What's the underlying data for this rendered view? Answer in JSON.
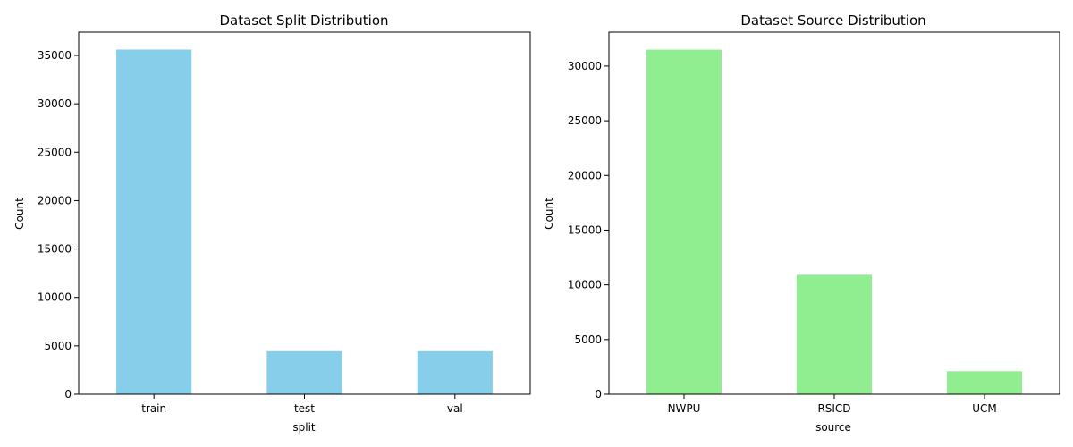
{
  "chart_data": [
    {
      "type": "bar",
      "title": "Dataset Split Distribution",
      "xlabel": "split",
      "ylabel": "Count",
      "categories": [
        "train",
        "test",
        "val"
      ],
      "values": [
        35600,
        4450,
        4450
      ],
      "ylim": [
        0,
        37400
      ],
      "yticks": [
        0,
        5000,
        10000,
        15000,
        20000,
        25000,
        30000,
        35000
      ],
      "color": "#87ceeb",
      "grid": false
    },
    {
      "type": "bar",
      "title": "Dataset Source Distribution",
      "xlabel": "source",
      "ylabel": "Count",
      "categories": [
        "NWPU",
        "RSICD",
        "UCM"
      ],
      "values": [
        31500,
        10921,
        2100
      ],
      "ylim": [
        0,
        33100
      ],
      "yticks": [
        0,
        5000,
        10000,
        15000,
        20000,
        25000,
        30000
      ],
      "color": "#90ee90",
      "grid": false
    }
  ]
}
